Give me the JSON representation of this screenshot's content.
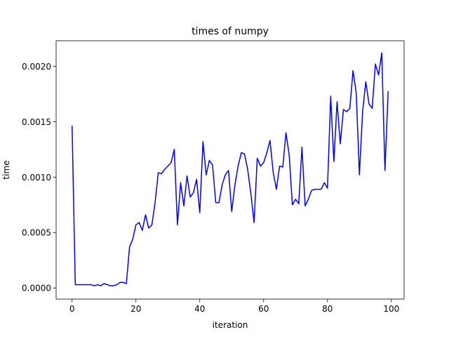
{
  "chart_data": {
    "type": "line",
    "title": "times of numpy",
    "xlabel": "iteration",
    "ylabel": "time",
    "xlim": [
      -5,
      104
    ],
    "ylim": [
      -0.0001,
      0.00223
    ],
    "xticks": [
      0,
      20,
      40,
      60,
      80,
      100
    ],
    "xtick_labels": [
      "0",
      "20",
      "40",
      "60",
      "80",
      "100"
    ],
    "yticks": [
      0.0,
      0.0005,
      0.001,
      0.0015,
      0.002
    ],
    "ytick_labels": [
      "0.0000",
      "0.0005",
      "0.0010",
      "0.0015",
      "0.0020"
    ],
    "grid": false,
    "line_color": "#0000ff",
    "x": [
      0,
      1,
      2,
      3,
      4,
      5,
      6,
      7,
      8,
      9,
      10,
      11,
      12,
      13,
      14,
      15,
      16,
      17,
      18,
      19,
      20,
      21,
      22,
      23,
      24,
      25,
      26,
      27,
      28,
      29,
      30,
      31,
      32,
      33,
      34,
      35,
      36,
      37,
      38,
      39,
      40,
      41,
      42,
      43,
      44,
      45,
      46,
      47,
      48,
      49,
      50,
      51,
      52,
      53,
      54,
      55,
      56,
      57,
      58,
      59,
      60,
      61,
      62,
      63,
      64,
      65,
      66,
      67,
      68,
      69,
      70,
      71,
      72,
      73,
      74,
      75,
      76,
      77,
      78,
      79,
      80,
      81,
      82,
      83,
      84,
      85,
      86,
      87,
      88,
      89,
      90,
      91,
      92,
      93,
      94,
      95,
      96,
      97,
      98,
      99
    ],
    "series": [
      {
        "values": [
          0.00146,
          3e-05,
          3e-05,
          3e-05,
          3e-05,
          3e-05,
          3e-05,
          2e-05,
          3e-05,
          2e-05,
          4e-05,
          3e-05,
          2e-05,
          2e-05,
          3e-05,
          5e-05,
          5e-05,
          4e-05,
          0.00037,
          0.00044,
          0.00057,
          0.00059,
          0.00052,
          0.00066,
          0.00054,
          0.00057,
          0.00077,
          0.00104,
          0.00103,
          0.00107,
          0.0011,
          0.00113,
          0.00125,
          0.00057,
          0.00095,
          0.00074,
          0.00101,
          0.00082,
          0.00086,
          0.00098,
          0.00068,
          0.00132,
          0.00102,
          0.00115,
          0.00111,
          0.00077,
          0.00077,
          0.00093,
          0.00102,
          0.00106,
          0.00069,
          0.00093,
          0.0011,
          0.00122,
          0.00121,
          0.00107,
          0.00085,
          0.00059,
          0.00117,
          0.0011,
          0.00113,
          0.00122,
          0.00133,
          0.00104,
          0.00089,
          0.0011,
          0.00109,
          0.0014,
          0.0012,
          0.00075,
          0.0008,
          0.00076,
          0.00127,
          0.00074,
          0.0008,
          0.00088,
          0.00089,
          0.00089,
          0.00089,
          0.00095,
          0.0009,
          0.00173,
          0.00114,
          0.00168,
          0.0013,
          0.00161,
          0.00159,
          0.00162,
          0.00196,
          0.00176,
          0.00102,
          0.00159,
          0.00186,
          0.00166,
          0.00162,
          0.00202,
          0.00192,
          0.00212,
          0.00106,
          0.00177
        ]
      }
    ]
  }
}
